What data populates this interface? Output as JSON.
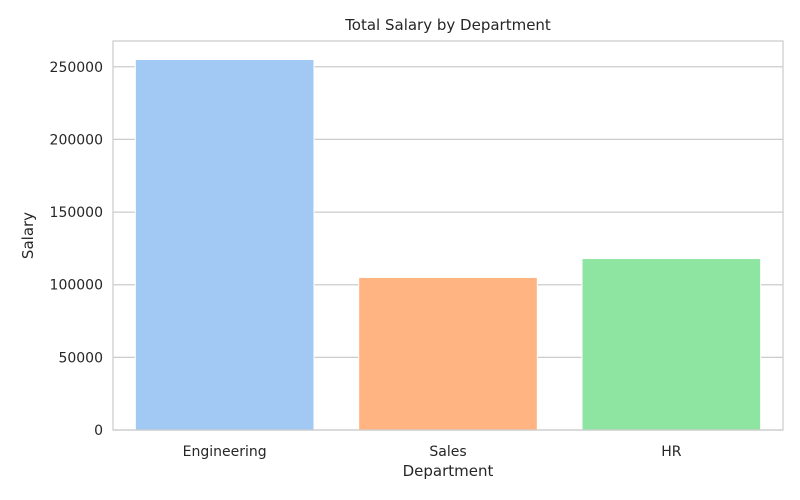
{
  "chart_data": {
    "type": "bar",
    "title": "Total Salary by Department",
    "xlabel": "Department",
    "ylabel": "Salary",
    "categories": [
      "Engineering",
      "Sales",
      "HR"
    ],
    "values": [
      255000,
      105000,
      118000
    ],
    "colors": [
      "#a1c9f4",
      "#ffb482",
      "#8de5a1"
    ],
    "ylim": [
      0,
      267750
    ],
    "yticks": [
      0,
      50000,
      100000,
      150000,
      200000,
      250000
    ],
    "ytick_labels": [
      "0",
      "50000",
      "100000",
      "150000",
      "200000",
      "250000"
    ],
    "grid": "horizontal",
    "legend": "none"
  }
}
